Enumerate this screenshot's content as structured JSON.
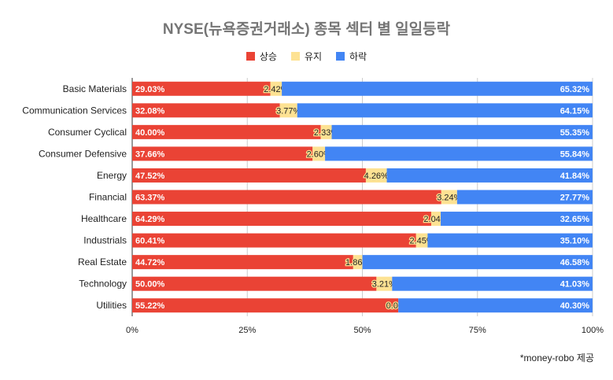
{
  "chart_data": {
    "type": "bar",
    "stacked": "percent",
    "orientation": "horizontal",
    "title": "NYSE(뉴욕증권거래소) 종목 섹터 별 일일등락",
    "categories": [
      "Basic Materials",
      "Communication Services",
      "Consumer Cyclical",
      "Consumer Defensive",
      "Energy",
      "Financial",
      "Healthcare",
      "Industrials",
      "Real Estate",
      "Technology",
      "Utilities"
    ],
    "series": [
      {
        "name": "상승",
        "color": "#ea4335",
        "values": [
          29.03,
          32.08,
          40.0,
          37.66,
          47.52,
          63.37,
          64.29,
          60.41,
          44.72,
          50.0,
          55.22
        ]
      },
      {
        "name": "유지",
        "color": "#fde293",
        "values": [
          2.42,
          3.77,
          2.33,
          2.6,
          4.26,
          3.24,
          2.04,
          2.45,
          1.86,
          3.21,
          0.0
        ]
      },
      {
        "name": "하락",
        "color": "#4285f4",
        "values": [
          65.32,
          64.15,
          55.35,
          55.84,
          41.84,
          27.77,
          32.65,
          35.1,
          46.58,
          41.03,
          40.3
        ]
      }
    ],
    "xticks": [
      "0%",
      "25%",
      "50%",
      "75%",
      "100%"
    ],
    "xlim": [
      0,
      100
    ],
    "legend": "top",
    "grid": true
  },
  "credit": "*money-robo 제공"
}
